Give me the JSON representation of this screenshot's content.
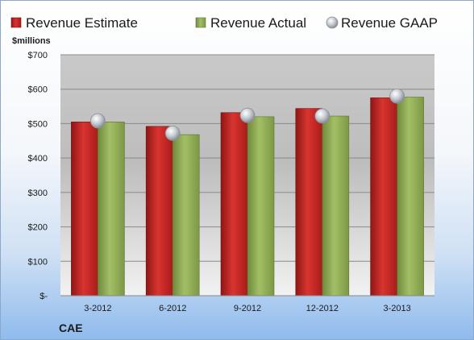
{
  "chart_data": {
    "type": "bar",
    "categories": [
      "3-2012",
      "6-2012",
      "9-2012",
      "12-2012",
      "3-2013"
    ],
    "series": [
      {
        "name": "Revenue Estimate",
        "type": "bar",
        "color": "#c0201f",
        "values": [
          505,
          492,
          532,
          544,
          575
        ]
      },
      {
        "name": "Revenue Actual",
        "type": "bar",
        "color": "#8caa52",
        "values": [
          505,
          468,
          520,
          522,
          577
        ]
      },
      {
        "name": "Revenue GAAP",
        "type": "marker",
        "color": "#b8bcc4",
        "values": [
          508,
          472,
          524,
          522,
          580
        ]
      }
    ],
    "ylabel": "$millions",
    "ylim": [
      0,
      700
    ],
    "yticks": [
      0,
      100,
      200,
      300,
      400,
      500,
      600,
      700
    ],
    "ytick_labels": [
      "$-",
      "$100",
      "$200",
      "$300",
      "$400",
      "$500",
      "$600",
      "$700"
    ],
    "legend_position": "top",
    "grid": true
  },
  "footer": {
    "ticker": "CAE"
  }
}
